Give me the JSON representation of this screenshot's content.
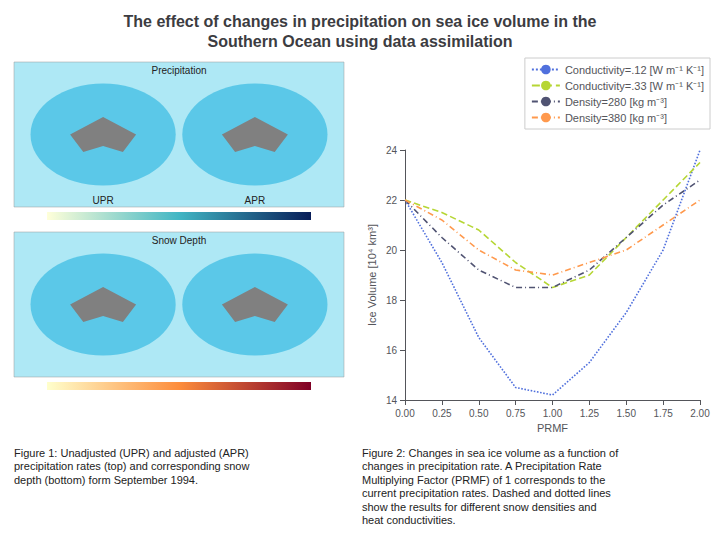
{
  "chart_data": {
    "type": "line",
    "title": "The effect of changes in precipitation on sea ice volume in the\nSouthern Ocean using data assimilation",
    "x": [
      0,
      0.25,
      0.5,
      0.75,
      1.0,
      1.25,
      1.5,
      1.75,
      2.0
    ],
    "series": [
      {
        "name": "Conductivity=.12 [W m⁻¹ K⁻¹]",
        "values": [
          22.0,
          19.5,
          16.5,
          14.5,
          14.2,
          15.5,
          17.5,
          20.0,
          24.0
        ],
        "line_style": "dotted"
      },
      {
        "name": "Conductivity=.33 [W m⁻¹ K⁻¹]",
        "values": [
          22.0,
          21.5,
          20.8,
          19.5,
          18.5,
          19.0,
          20.5,
          22.0,
          23.5
        ],
        "line_style": "dashed"
      },
      {
        "name": "Density=280 [kg m⁻³]",
        "values": [
          22.0,
          20.5,
          19.2,
          18.5,
          18.5,
          19.2,
          20.5,
          21.8,
          22.8
        ],
        "line_style": "dashdot"
      },
      {
        "name": "Density=380 [kg m⁻³]",
        "values": [
          22.0,
          21.2,
          20.0,
          19.2,
          19.0,
          19.5,
          20.0,
          21.0,
          22.0
        ],
        "line_style": "dashdot"
      }
    ],
    "xlabel": "PRMF",
    "ylabel": "Ice Volume [10⁴ km³]",
    "xlim": [
      0,
      2.0
    ],
    "ylim": [
      14,
      24
    ],
    "xticks": [
      {
        "value": 0,
        "label": "0.00"
      },
      {
        "value": 0.25,
        "label": "0.25"
      },
      {
        "value": 0.5,
        "label": "0.50"
      },
      {
        "value": 0.75,
        "label": "0.75"
      },
      {
        "value": 1.0,
        "label": "1.00"
      },
      {
        "value": 1.25,
        "label": "1.25"
      },
      {
        "value": 1.5,
        "label": "1.50"
      },
      {
        "value": 1.75,
        "label": "1.75"
      },
      {
        "value": 2.0,
        "label": "2.00"
      }
    ],
    "yticks": [
      14,
      16,
      18,
      20,
      22,
      24
    ],
    "grid": false,
    "legend": "upper right",
    "annotations": [
      "Precipitation",
      "UPR",
      "APR",
      "Snow Depth",
      "Figure 1: Unadjusted (UPR) and adjusted (APR)\nprecipitation rates (top) and corresponding snow\ndepth (bottom) form September 1994.",
      "Figure 2: Changes in sea ice volume as a function of\nchanges in precipitation rate. A Precipitation Rate\nMultiplying Factor (PRMF) of 1 corresponds to the\ncurrent precipitation rates. Dashed and dotted lines\nshow the results for different snow densities and\nheat conductivities."
    ]
  }
}
